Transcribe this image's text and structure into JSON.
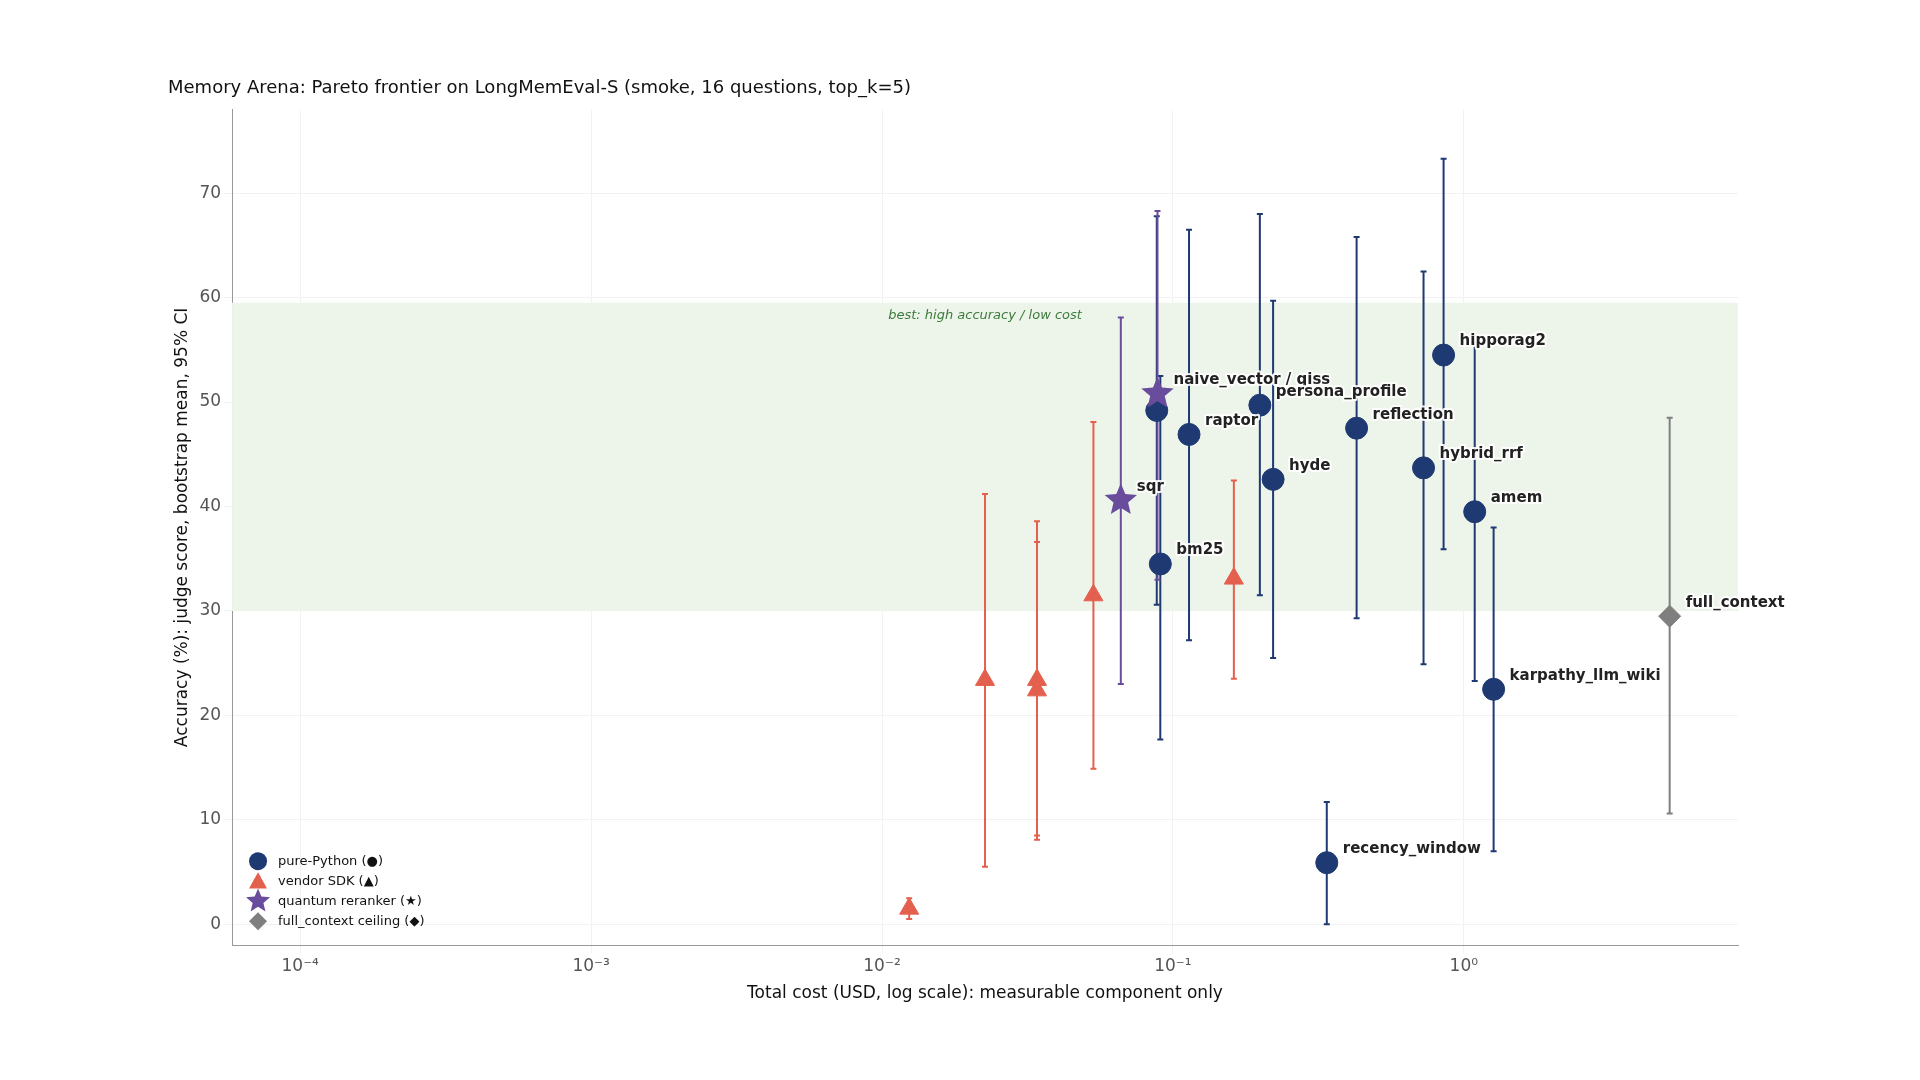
{
  "chart_data": {
    "type": "scatter",
    "title": "Memory Arena: Pareto frontier on LongMemEval-S (smoke, 16 questions, top_k=5)",
    "xlabel": "Total cost (USD, log scale): measurable component only",
    "ylabel": "Accuracy (%): judge score, bootstrap mean, 95% CI",
    "log": "x",
    "grid": true,
    "legend": "bottom left",
    "xlim": [
      5.83e-05,
      8.76
    ],
    "ylim": [
      -2,
      78
    ],
    "xticks": [
      {
        "value": 0.0001,
        "label": "10⁻⁴"
      },
      {
        "value": 0.001,
        "label": "10⁻³"
      },
      {
        "value": 0.01,
        "label": "10⁻²"
      },
      {
        "value": 0.1,
        "label": "10⁻¹"
      },
      {
        "value": 1,
        "label": "10⁰"
      }
    ],
    "yticks": [
      0,
      10,
      20,
      30,
      40,
      50,
      60,
      70
    ],
    "bands": [
      {
        "axis": "y",
        "from": 30,
        "to": 59.5,
        "label": "best: high accuracy / low cost",
        "color": "#edf5eb"
      }
    ],
    "series": [
      {
        "name": "pure-Python (●)",
        "color": "#1f3a73",
        "marker": "circle",
        "x": [
          0.088,
          0.0905,
          0.1136,
          0.199,
          0.221,
          0.428,
          0.727,
          0.852,
          1.09,
          1.266,
          0.338
        ],
        "values": [
          49.2,
          34.5,
          46.9,
          49.7,
          42.6,
          47.5,
          43.7,
          54.5,
          39.5,
          22.5,
          5.9
        ],
        "errors": [
          [
            30.6,
            67.8
          ],
          [
            17.7,
            52.5
          ],
          [
            27.2,
            66.5
          ],
          [
            31.5,
            68.0
          ],
          [
            25.5,
            59.7
          ],
          [
            29.3,
            65.8
          ],
          [
            24.9,
            62.5
          ],
          [
            35.9,
            73.3
          ],
          [
            23.3,
            55.7
          ],
          [
            7.0,
            38.0
          ],
          [
            0,
            11.7
          ]
        ]
      },
      {
        "name": "vendor SDK (▲)",
        "color": "#e4604e",
        "marker": "triangle",
        "x": [
          0.0124,
          0.0226,
          0.0341,
          0.0341,
          0.0533,
          0.162
        ],
        "values": [
          1.5,
          23.4,
          23.4,
          22.4,
          31.5,
          33.1
        ],
        "errors": [
          [
            0.5,
            2.5
          ],
          [
            5.5,
            41.2
          ],
          [
            8.5,
            38.6
          ],
          [
            8.1,
            36.6
          ],
          [
            14.9,
            48.1
          ],
          [
            23.5,
            42.5
          ]
        ]
      },
      {
        "name": "quantum reranker (★)",
        "color": "#6a4c9c",
        "marker": "star",
        "x": [
          0.0885,
          0.0662
        ],
        "values": [
          50.8,
          40.6
        ],
        "errors": [
          [
            33,
            68.3
          ],
          [
            23,
            58.1
          ]
        ]
      },
      {
        "name": "full_context ceiling (◆)",
        "color": "#7f7f7f",
        "marker": "diamond",
        "x": [
          5.1
        ],
        "values": [
          29.5
        ],
        "errors": [
          [
            10.6,
            48.5
          ]
        ]
      }
    ],
    "annotations": [
      {
        "text": "naive_vector / qiss",
        "x": 0.0885,
        "y": 50.8
      },
      {
        "text": "bm25",
        "x": 0.0905,
        "y": 34.5
      },
      {
        "text": "raptor",
        "x": 0.1136,
        "y": 46.9
      },
      {
        "text": "persona_profile",
        "x": 0.199,
        "y": 49.7
      },
      {
        "text": "hyde",
        "x": 0.221,
        "y": 42.6
      },
      {
        "text": "reflection",
        "x": 0.428,
        "y": 47.5
      },
      {
        "text": "hybrid_rrf",
        "x": 0.727,
        "y": 43.7
      },
      {
        "text": "hipporag2",
        "x": 0.852,
        "y": 54.5
      },
      {
        "text": "amem",
        "x": 1.09,
        "y": 39.5
      },
      {
        "text": "karpathy_llm_wiki",
        "x": 1.266,
        "y": 22.5
      },
      {
        "text": "recency_window",
        "x": 0.338,
        "y": 5.9
      },
      {
        "text": "sqr",
        "x": 0.0662,
        "y": 40.6
      },
      {
        "text": "full_context",
        "x": 5.1,
        "y": 29.5
      }
    ]
  }
}
